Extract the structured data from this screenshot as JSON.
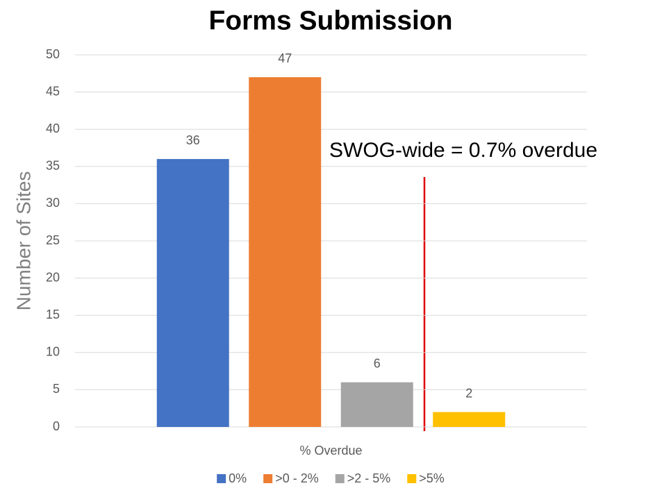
{
  "chart_data": {
    "type": "bar",
    "title": "Forms Submission",
    "categories": [
      "% Overdue"
    ],
    "series": [
      {
        "name": "0%",
        "color": "#4472c4",
        "values": [
          36
        ]
      },
      {
        "name": ">0 - 2%",
        "color": "#ed7d31",
        "values": [
          47
        ]
      },
      {
        "name": ">2 - 5%",
        "color": "#a5a5a5",
        "values": [
          6
        ]
      },
      {
        "name": ">5%",
        "color": "#ffc000",
        "values": [
          2
        ]
      }
    ],
    "ylabel": "Number of Sites",
    "annotation": "SWOG-wide = 0.7% overdue",
    "ylim": [
      0,
      50
    ],
    "yticks": [
      0,
      5,
      10,
      15,
      20,
      25,
      30,
      35,
      40,
      45,
      50
    ],
    "grid": true,
    "legend": "bottom"
  }
}
